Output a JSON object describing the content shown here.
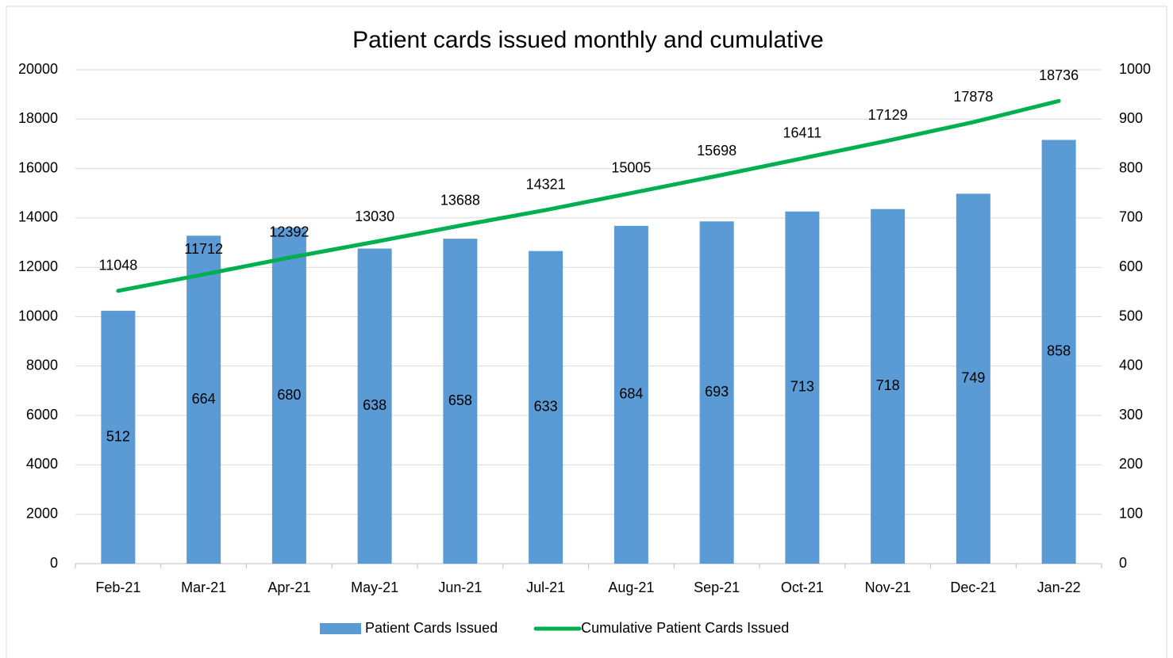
{
  "chart_data": {
    "type": "bar",
    "title": "Patient cards issued monthly and cumulative",
    "categories": [
      "Feb-21",
      "Mar-21",
      "Apr-21",
      "May-21",
      "Jun-21",
      "Jul-21",
      "Aug-21",
      "Sep-21",
      "Oct-21",
      "Nov-21",
      "Dec-21",
      "Jan-22"
    ],
    "series": [
      {
        "name": "Patient Cards Issued",
        "type": "bar",
        "axis": "y2",
        "color": "#5b9bd5",
        "values": [
          512,
          664,
          680,
          638,
          658,
          633,
          684,
          693,
          713,
          718,
          749,
          858
        ]
      },
      {
        "name": "Cumulative Patient Cards Issued",
        "type": "line",
        "axis": "y",
        "color": "#00b050",
        "values": [
          11048,
          11712,
          12392,
          13030,
          13688,
          14321,
          15005,
          15698,
          16411,
          17129,
          17878,
          18736
        ]
      }
    ],
    "ylim": [
      0,
      20000
    ],
    "yticks": [
      0,
      2000,
      4000,
      6000,
      8000,
      10000,
      12000,
      14000,
      16000,
      18000,
      20000
    ],
    "y2lim": [
      0,
      1000
    ],
    "y2ticks": [
      0,
      100,
      200,
      300,
      400,
      500,
      600,
      700,
      800,
      900,
      1000
    ],
    "grid": true,
    "legend": "bottom"
  }
}
